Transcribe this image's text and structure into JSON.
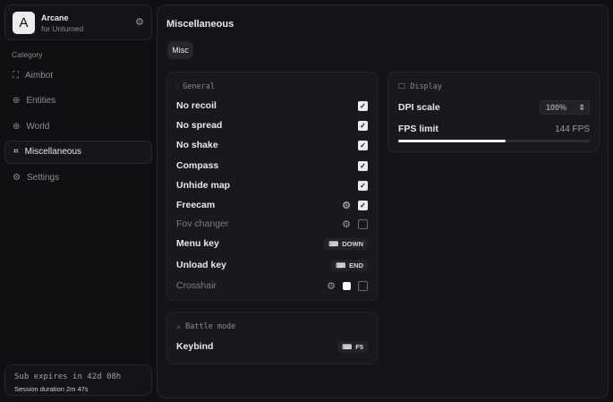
{
  "app": {
    "name": "Arcane",
    "subtitle": "for Unturned",
    "logo_letter": "A"
  },
  "sidebar": {
    "category_label": "Category",
    "items": [
      {
        "label": "Aimbot",
        "icon": "crosshair-icon",
        "glyph": "⛶",
        "active": false
      },
      {
        "label": "Entities",
        "icon": "scan-icon",
        "glyph": "⊛",
        "active": false
      },
      {
        "label": "World",
        "icon": "globe-icon",
        "glyph": "⊕",
        "active": false
      },
      {
        "label": "Miscellaneous",
        "icon": "grid-icon",
        "glyph": "⌗",
        "active": true
      },
      {
        "label": "Settings",
        "icon": "gear-icon",
        "glyph": "⚙",
        "active": false
      }
    ],
    "subscription": "Sub expires in 42d 08h",
    "session": "Session duration 2m 47s"
  },
  "main": {
    "title": "Miscellaneous",
    "tabs": [
      {
        "label": "Misc"
      }
    ],
    "general": {
      "title": "General",
      "rows": [
        {
          "label": "No recoil",
          "checked": true
        },
        {
          "label": "No spread",
          "checked": true
        },
        {
          "label": "No shake",
          "checked": true
        },
        {
          "label": "Compass",
          "checked": true
        },
        {
          "label": "Unhide map",
          "checked": true
        },
        {
          "label": "Freecam",
          "checked": true,
          "gear": true
        },
        {
          "label": "Fov changer",
          "checked": false,
          "gear": true,
          "dim": true
        },
        {
          "label": "Menu key",
          "key": "DOWN"
        },
        {
          "label": "Unload key",
          "key": "END"
        },
        {
          "label": "Crosshair",
          "checked": false,
          "gear": true,
          "dim": true,
          "color": "#ffffff"
        }
      ]
    },
    "battle": {
      "title": "Battle mode",
      "keybind_label": "Keybind",
      "keybind": "F5"
    },
    "display": {
      "title": "Display",
      "dpi_label": "DPI scale",
      "dpi_value": "100%",
      "fps_label": "FPS limit",
      "fps_value": "144 FPS",
      "fps_slider_fraction": 0.56
    }
  }
}
